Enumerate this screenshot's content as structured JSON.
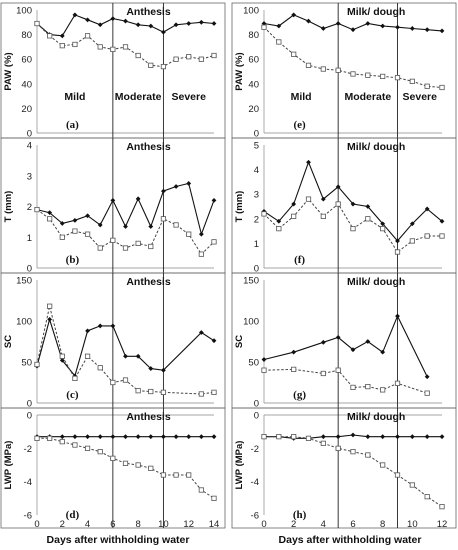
{
  "chart_data": [
    {
      "id": "a",
      "type": "line",
      "title": "Anthesis",
      "panel_label": "(a)",
      "ylabel": "PAW (%)",
      "ylim": [
        0,
        100
      ],
      "yticks": [
        0,
        20,
        40,
        60,
        80,
        100
      ],
      "xlim": [
        0,
        14
      ],
      "xticks": [],
      "zones": [
        "Mild",
        "Moderate",
        "Severe"
      ],
      "stage_lines": [
        6,
        10
      ],
      "series": [
        {
          "x": [
            0,
            1,
            2,
            3,
            4,
            5,
            6,
            7,
            8,
            9,
            10,
            11,
            12,
            13,
            14
          ],
          "values": [
            89,
            80,
            79,
            96,
            92,
            88,
            93,
            91,
            88,
            87,
            82,
            88,
            89,
            90,
            89
          ]
        },
        {
          "x": [
            0,
            1,
            2,
            3,
            4,
            5,
            6,
            7,
            8,
            9,
            10,
            11,
            12,
            13,
            14
          ],
          "values": [
            89,
            79,
            71,
            72,
            79,
            70,
            68,
            70,
            63,
            55,
            54,
            60,
            62,
            60,
            63
          ]
        }
      ]
    },
    {
      "id": "e",
      "type": "line",
      "title": "Milk/ dough",
      "panel_label": "(e)",
      "ylabel": "PAW (%)",
      "ylim": [
        0,
        100
      ],
      "yticks": [
        0,
        20,
        40,
        60,
        80,
        100
      ],
      "xlim": [
        0,
        12
      ],
      "xticks": [],
      "zones": [
        "Mild",
        "Moderate",
        "Severe"
      ],
      "stage_lines": [
        5,
        9
      ],
      "series": [
        {
          "x": [
            0,
            1,
            2,
            3,
            4,
            5,
            6,
            7,
            8,
            9,
            10,
            11,
            12
          ],
          "values": [
            89,
            87,
            96,
            91,
            85,
            89,
            84,
            89,
            87,
            86,
            85,
            84,
            83
          ]
        },
        {
          "x": [
            0,
            1,
            2,
            3,
            4,
            5,
            6,
            7,
            8,
            9,
            10,
            11,
            12
          ],
          "values": [
            86,
            74,
            64,
            55,
            52,
            51,
            48,
            47,
            46,
            45,
            42,
            38,
            37
          ]
        }
      ]
    },
    {
      "id": "b",
      "type": "line",
      "title": "Anthesis",
      "panel_label": "(b)",
      "ylabel": "T (mm)",
      "ylim": [
        0,
        4
      ],
      "yticks": [
        0,
        1,
        2,
        3,
        4
      ],
      "xlim": [
        0,
        14
      ],
      "xticks": [],
      "stage_lines": [
        6,
        10
      ],
      "series": [
        {
          "x": [
            0,
            1,
            2,
            3,
            4,
            5,
            6,
            7,
            8,
            9,
            10,
            11,
            12,
            13,
            14
          ],
          "values": [
            1.9,
            1.8,
            1.45,
            1.55,
            1.7,
            1.4,
            2.2,
            1.35,
            2.25,
            1.35,
            2.5,
            2.65,
            2.75,
            1.1,
            2.2
          ]
        },
        {
          "x": [
            0,
            1,
            2,
            3,
            4,
            5,
            6,
            7,
            8,
            9,
            10,
            11,
            12,
            13,
            14
          ],
          "values": [
            1.9,
            1.6,
            1.0,
            1.2,
            1.1,
            0.65,
            0.9,
            0.65,
            0.8,
            0.7,
            1.6,
            1.4,
            1.1,
            0.45,
            0.85
          ]
        }
      ]
    },
    {
      "id": "f",
      "type": "line",
      "title": "Milk/ dough",
      "panel_label": "(f)",
      "ylabel": "T (mm)",
      "ylim": [
        0,
        5
      ],
      "yticks": [
        0,
        1,
        2,
        3,
        4,
        5
      ],
      "xlim": [
        0,
        12
      ],
      "xticks": [],
      "stage_lines": [
        5,
        9
      ],
      "series": [
        {
          "x": [
            0,
            1,
            2,
            3,
            4,
            5,
            6,
            7,
            8,
            9,
            10,
            11,
            12
          ],
          "values": [
            2.3,
            1.9,
            2.6,
            4.3,
            2.8,
            3.3,
            2.6,
            2.5,
            1.8,
            1.1,
            1.8,
            2.4,
            1.9
          ]
        },
        {
          "x": [
            0,
            1,
            2,
            3,
            4,
            5,
            6,
            7,
            8,
            9,
            10,
            11,
            12
          ],
          "values": [
            2.2,
            1.6,
            2.1,
            2.8,
            2.1,
            2.6,
            1.6,
            2.0,
            1.6,
            0.65,
            1.1,
            1.3,
            1.3
          ]
        }
      ]
    },
    {
      "id": "c",
      "type": "line",
      "title": "Anthesis",
      "panel_label": "(c)",
      "ylabel": "SC",
      "ylim": [
        0,
        150
      ],
      "yticks": [
        0,
        50,
        100,
        150
      ],
      "xlim": [
        0,
        14
      ],
      "xticks": [],
      "stage_lines": [
        6,
        10
      ],
      "series": [
        {
          "x": [
            0,
            1,
            2,
            3,
            4,
            5,
            6,
            7,
            8,
            9,
            10,
            13,
            14
          ],
          "values": [
            45,
            102,
            52,
            33,
            88,
            94,
            94,
            57,
            57,
            42,
            40,
            86,
            76
          ]
        },
        {
          "x": [
            0,
            1,
            2,
            3,
            4,
            5,
            6,
            7,
            8,
            9,
            10,
            13,
            14
          ],
          "values": [
            47,
            118,
            57,
            30,
            57,
            43,
            25,
            28,
            15,
            14,
            13,
            11,
            13
          ]
        }
      ]
    },
    {
      "id": "g",
      "type": "line",
      "title": "Milk/ dough",
      "panel_label": "(g)",
      "ylabel": "SC",
      "ylim": [
        0,
        150
      ],
      "yticks": [
        0,
        50,
        100,
        150
      ],
      "xlim": [
        0,
        12
      ],
      "xticks": [],
      "stage_lines": [
        5,
        9
      ],
      "series": [
        {
          "x": [
            0,
            2,
            4,
            5,
            6,
            7,
            8,
            9,
            11
          ],
          "values": [
            53,
            62,
            74,
            80,
            65,
            75,
            62,
            106,
            32
          ]
        },
        {
          "x": [
            0,
            2,
            4,
            5,
            6,
            7,
            8,
            9,
            11
          ],
          "values": [
            40,
            41,
            36,
            40,
            19,
            20,
            16,
            24,
            12
          ]
        }
      ]
    },
    {
      "id": "d",
      "type": "line",
      "title": "Anthesis",
      "panel_label": "(d)",
      "ylabel": "LWP (MPa)",
      "ylim": [
        -6,
        0
      ],
      "yticks": [
        -6,
        -4,
        -2,
        0
      ],
      "xlim": [
        0,
        14
      ],
      "xticks": [
        0,
        2,
        4,
        6,
        8,
        10,
        12,
        14
      ],
      "stage_lines": [
        6,
        10
      ],
      "series": [
        {
          "x": [
            0,
            1,
            2,
            3,
            4,
            5,
            6,
            7,
            8,
            9,
            10,
            11,
            12,
            13,
            14
          ],
          "values": [
            -1.3,
            -1.3,
            -1.3,
            -1.3,
            -1.3,
            -1.3,
            -1.3,
            -1.3,
            -1.3,
            -1.3,
            -1.3,
            -1.3,
            -1.3,
            -1.3,
            -1.3
          ]
        },
        {
          "x": [
            0,
            1,
            2,
            3,
            4,
            5,
            6,
            7,
            8,
            9,
            10,
            11,
            12,
            13,
            14
          ],
          "values": [
            -1.4,
            -1.4,
            -1.6,
            -1.8,
            -2.0,
            -2.2,
            -2.6,
            -2.9,
            -3.0,
            -3.2,
            -3.6,
            -3.6,
            -3.6,
            -4.5,
            -5.0
          ]
        }
      ]
    },
    {
      "id": "h",
      "type": "line",
      "title": "Milk/ dough",
      "panel_label": "(h)",
      "ylabel": "LWP (MPa)",
      "ylim": [
        -6,
        0
      ],
      "yticks": [
        -6,
        -4,
        -2,
        0
      ],
      "xlim": [
        0,
        12
      ],
      "xticks": [
        0,
        2,
        4,
        6,
        8,
        10,
        12
      ],
      "stage_lines": [
        5,
        9
      ],
      "series": [
        {
          "x": [
            0,
            1,
            2,
            3,
            4,
            5,
            6,
            7,
            8,
            9,
            10,
            11,
            12
          ],
          "values": [
            -1.3,
            -1.3,
            -1.4,
            -1.4,
            -1.3,
            -1.3,
            -1.2,
            -1.3,
            -1.3,
            -1.3,
            -1.3,
            -1.3,
            -1.3
          ]
        },
        {
          "x": [
            0,
            1,
            2,
            3,
            4,
            5,
            6,
            7,
            8,
            9,
            10,
            11,
            12
          ],
          "values": [
            -1.3,
            -1.3,
            -1.3,
            -1.4,
            -1.7,
            -2.0,
            -2.2,
            -2.4,
            -3.0,
            -3.6,
            -4.2,
            -4.9,
            -5.5
          ]
        }
      ]
    }
  ],
  "xlabel": "Days after withholding water"
}
